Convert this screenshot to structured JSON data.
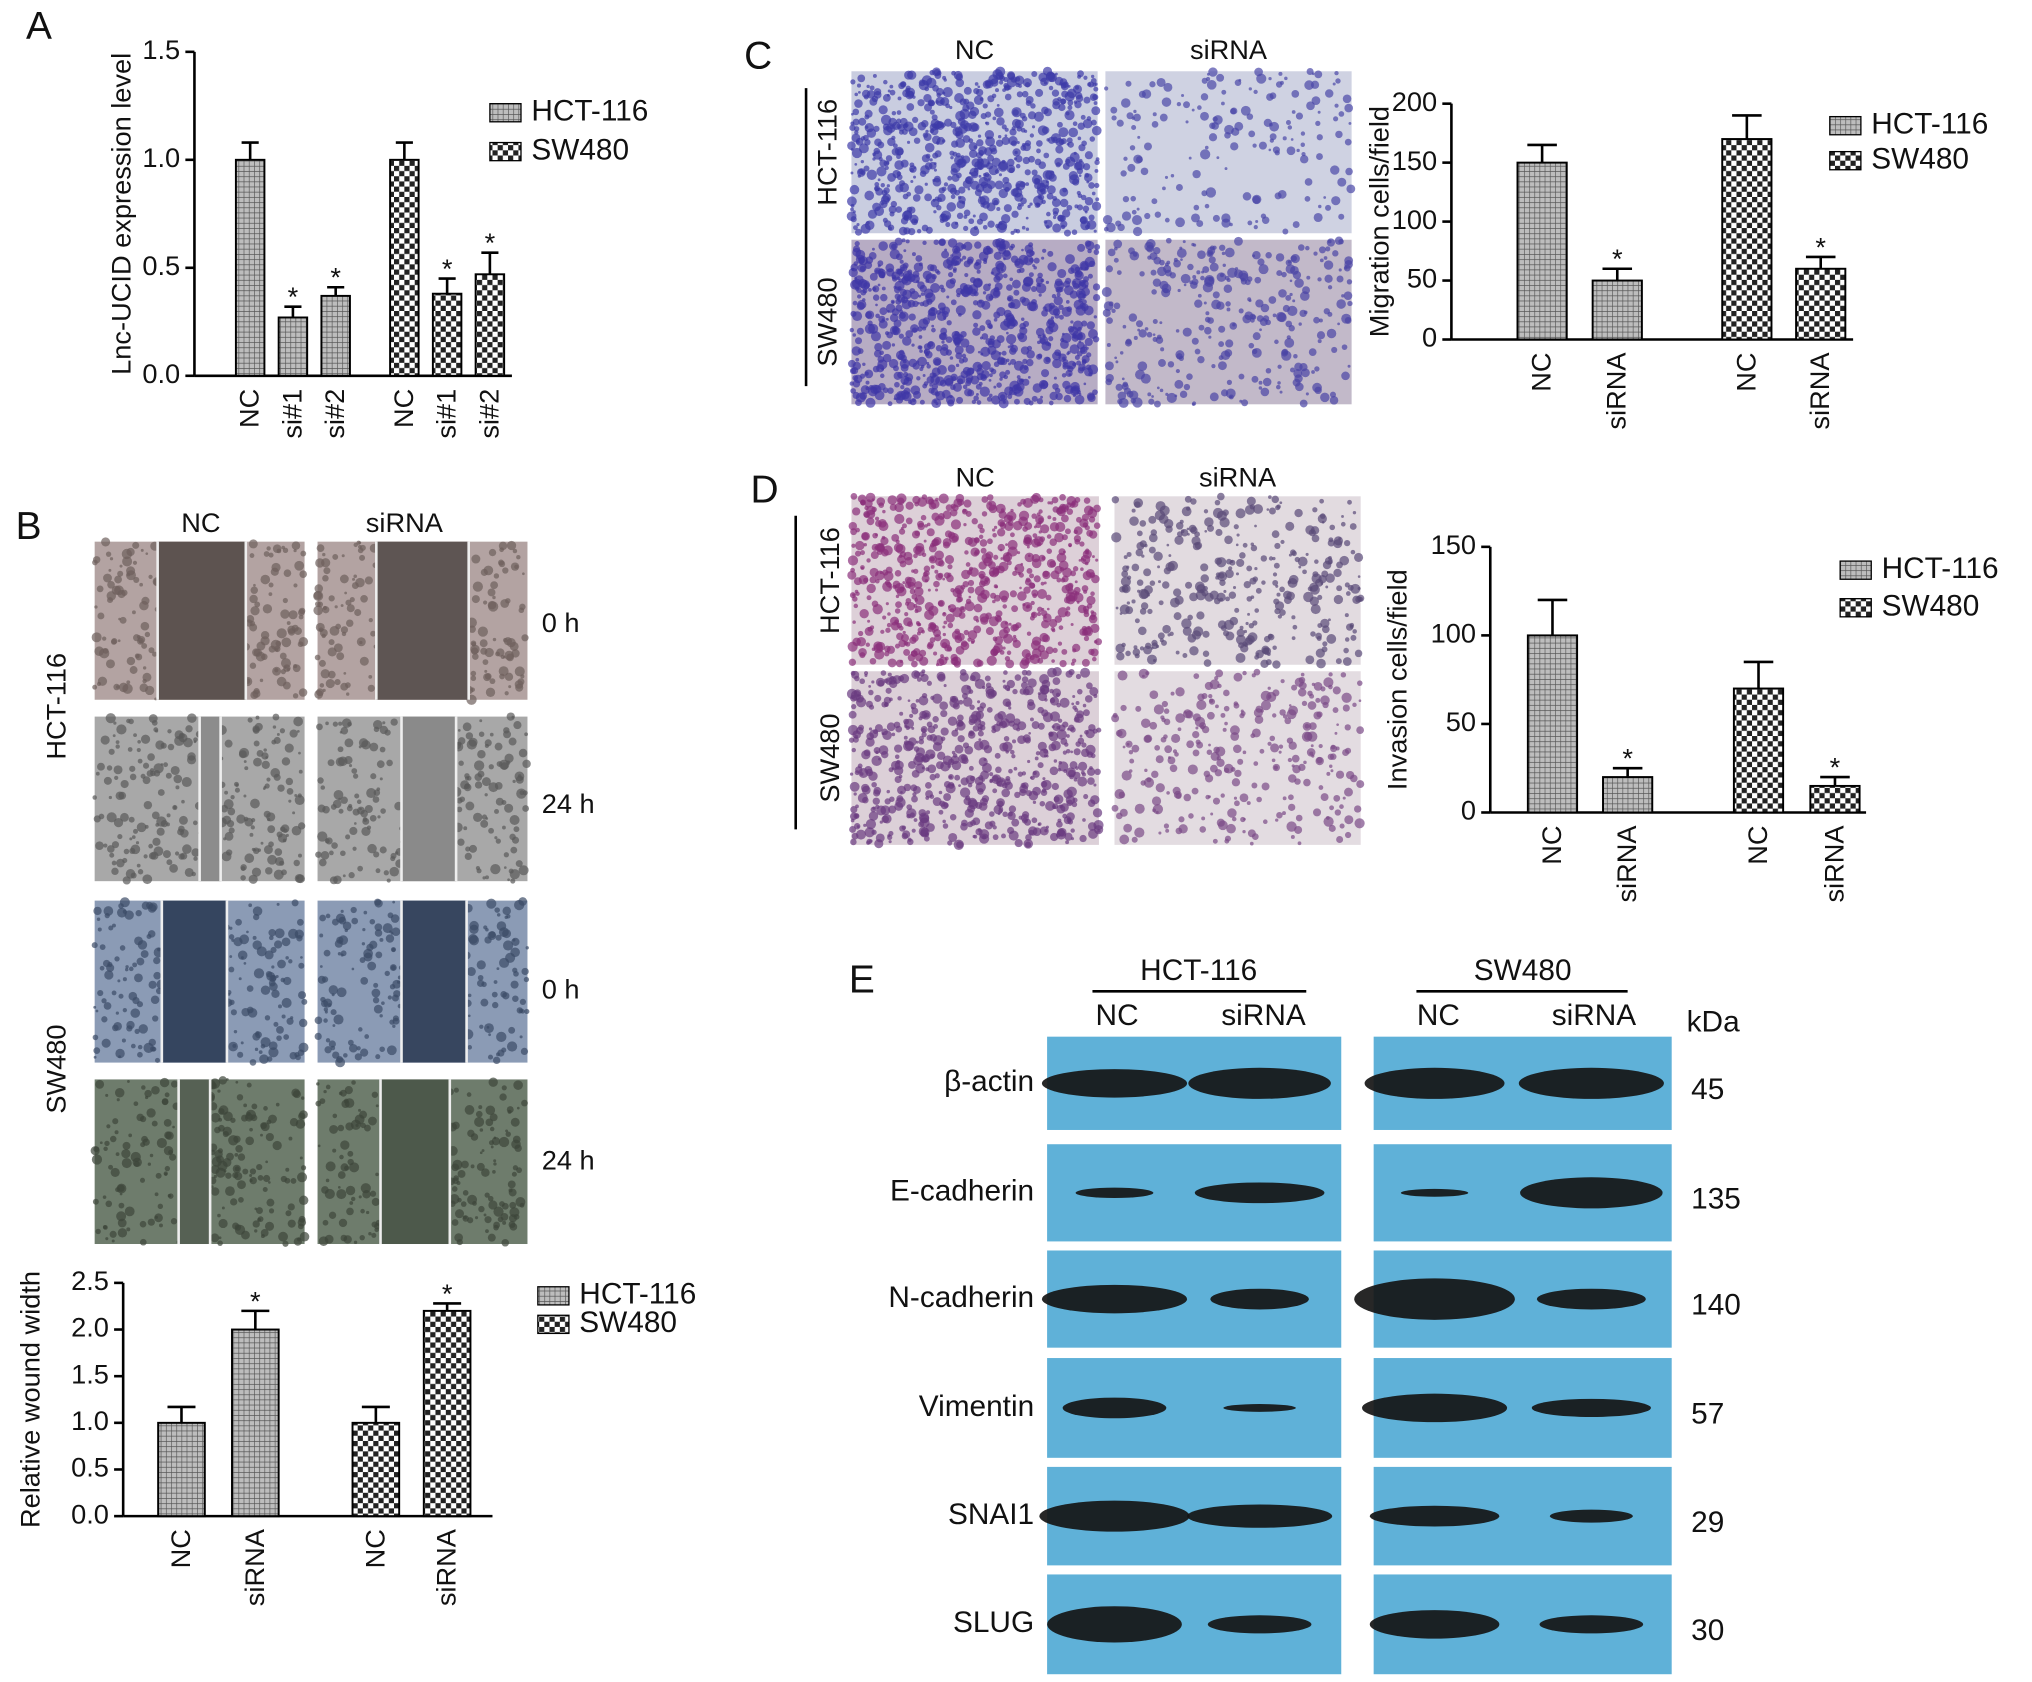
{
  "chart_data": [
    {
      "type": "bar",
      "ylabel": "Lnc-UCID expression level",
      "categories": [
        "NC",
        "si#1",
        "si#2",
        "NC",
        "si#1",
        "si#2"
      ],
      "ylim": [
        0,
        1.5
      ],
      "yticks": [
        {
          "value": 0,
          "label": "0.0"
        },
        0.5,
        {
          "value": 1,
          "label": "1.0"
        },
        1.5
      ],
      "series": [
        {
          "name": "HCT-116",
          "pattern": "crosshatch",
          "values": [
            1.0,
            0.27,
            0.37,
            null,
            null,
            null
          ],
          "errors": [
            0.08,
            0.05,
            0.04,
            null,
            null,
            null
          ],
          "significance": [
            null,
            "*",
            "*",
            null,
            null,
            null
          ]
        },
        {
          "name": "SW480",
          "pattern": "checker",
          "values": [
            null,
            null,
            null,
            1.0,
            0.38,
            0.47
          ],
          "errors": [
            null,
            null,
            null,
            0.08,
            0.07,
            0.1
          ],
          "significance": [
            null,
            null,
            null,
            null,
            "*",
            "*"
          ]
        }
      ]
    },
    {
      "type": "bar",
      "ylabel": "Relative wound width",
      "categories": [
        "NC",
        "siRNA",
        "NC",
        "siRNA"
      ],
      "ylim": [
        0,
        2.5
      ],
      "yticks": [
        {
          "value": 0,
          "label": "0.0"
        },
        0.5,
        {
          "value": 1,
          "label": "1.0"
        },
        1.5,
        {
          "value": 2,
          "label": "2.0"
        },
        2.5
      ],
      "series": [
        {
          "name": "HCT-116",
          "pattern": "crosshatch",
          "values": [
            1.0,
            2.0,
            null,
            null
          ],
          "errors": [
            0.17,
            0.2,
            null,
            null
          ],
          "significance": [
            null,
            "*",
            null,
            null
          ]
        },
        {
          "name": "SW480",
          "pattern": "checker",
          "values": [
            null,
            null,
            1.0,
            2.2
          ],
          "errors": [
            null,
            null,
            0.17,
            0.08
          ],
          "significance": [
            null,
            null,
            null,
            "*"
          ]
        }
      ]
    },
    {
      "type": "bar",
      "ylabel": "Migration cells/field",
      "categories": [
        "NC",
        "siRNA",
        "NC",
        "siRNA"
      ],
      "ylim": [
        0,
        200
      ],
      "yticks": [
        0,
        50,
        100,
        150,
        200
      ],
      "series": [
        {
          "name": "HCT-116",
          "pattern": "crosshatch",
          "values": [
            150,
            50,
            null,
            null
          ],
          "errors": [
            15,
            10,
            null,
            null
          ],
          "significance": [
            null,
            "*",
            null,
            null
          ]
        },
        {
          "name": "SW480",
          "pattern": "checker",
          "values": [
            null,
            null,
            170,
            60
          ],
          "errors": [
            null,
            null,
            20,
            10
          ],
          "significance": [
            null,
            null,
            null,
            "*"
          ]
        }
      ]
    },
    {
      "type": "bar",
      "ylabel": "Invasion cells/field",
      "categories": [
        "NC",
        "siRNA",
        "NC",
        "siRNA"
      ],
      "ylim": [
        0,
        150
      ],
      "yticks": [
        0,
        50,
        100,
        150
      ],
      "series": [
        {
          "name": "HCT-116",
          "pattern": "crosshatch",
          "values": [
            100,
            20,
            null,
            null
          ],
          "errors": [
            20,
            5,
            null,
            null
          ],
          "significance": [
            null,
            "*",
            null,
            null
          ]
        },
        {
          "name": "SW480",
          "pattern": "checker",
          "values": [
            null,
            null,
            70,
            15
          ],
          "errors": [
            null,
            null,
            15,
            5
          ],
          "significance": [
            null,
            null,
            null,
            "*"
          ]
        }
      ]
    }
  ],
  "panel_labels": [
    "A",
    "B",
    "C",
    "D",
    "E"
  ],
  "wound_assay": {
    "columns": [
      "NC",
      "siRNA"
    ],
    "rows": [
      "HCT-116",
      "SW480"
    ],
    "times": [
      "0 h",
      "24 h",
      "0 h",
      "24 h"
    ]
  },
  "migration_images": {
    "columns": [
      "NC",
      "siRNA"
    ],
    "rows": [
      "HCT-116",
      "SW480"
    ]
  },
  "invasion_images": {
    "columns": [
      "NC",
      "siRNA"
    ],
    "rows": [
      "HCT-116",
      "SW480"
    ]
  },
  "western_blot": {
    "groups": [
      "HCT-116",
      "SW480"
    ],
    "lanes": [
      "NC",
      "siRNA",
      "NC",
      "siRNA"
    ],
    "unit": "kDa",
    "proteins": [
      {
        "name": "β-actin",
        "kda": 45
      },
      {
        "name": "E-cadherin",
        "kda": 135
      },
      {
        "name": "N-cadherin",
        "kda": 140
      },
      {
        "name": "Vimentin",
        "kda": 57
      },
      {
        "name": "SNAI1",
        "kda": 29
      },
      {
        "name": "SLUG",
        "kda": 30
      }
    ]
  }
}
